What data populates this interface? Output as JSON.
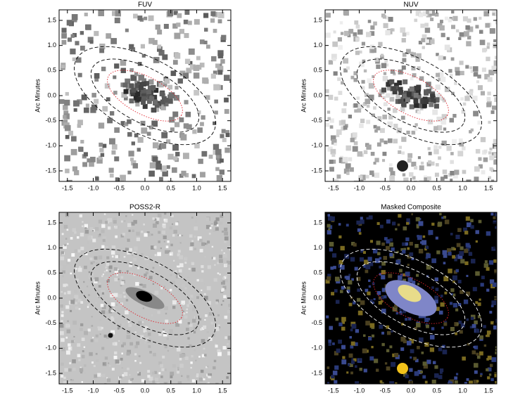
{
  "chart_data": [
    {
      "type": "image",
      "title": "FUV",
      "ylabel": "Arc Minutes",
      "style": "fuv",
      "xlim": [
        -1.66,
        1.66
      ],
      "ylim": [
        -1.71,
        1.71
      ],
      "xticks": [
        -1.5,
        {
          "value": -1,
          "label": "-1.0"
        },
        -0.5,
        {
          "value": 0,
          "label": "0.0"
        },
        0.5,
        {
          "value": 1,
          "label": "1.0"
        },
        1.5
      ],
      "yticks": [
        -1.5,
        {
          "value": -1,
          "label": "-1.0"
        },
        -0.5,
        {
          "value": 0,
          "label": "0.0"
        },
        0.5,
        {
          "value": 1,
          "label": "1.0"
        },
        1.5
      ]
    },
    {
      "type": "image",
      "title": "NUV",
      "ylabel": "Arc Minutes",
      "style": "nuv",
      "xlim": [
        -1.66,
        1.66
      ],
      "ylim": [
        -1.71,
        1.71
      ],
      "xticks": [
        -1.5,
        {
          "value": -1,
          "label": "-1.0"
        },
        -0.5,
        {
          "value": 0,
          "label": "0.0"
        },
        0.5,
        {
          "value": 1,
          "label": "1.0"
        },
        1.5
      ],
      "yticks": [
        -1.5,
        {
          "value": -1,
          "label": "-1.0"
        },
        -0.5,
        {
          "value": 0,
          "label": "0.0"
        },
        0.5,
        {
          "value": 1,
          "label": "1.0"
        },
        1.5
      ]
    },
    {
      "type": "image",
      "title": "POSS2-R",
      "ylabel": "Arc Minutes",
      "style": "poss",
      "xlim": [
        -1.66,
        1.66
      ],
      "ylim": [
        -1.71,
        1.71
      ],
      "xticks": [
        -1.5,
        {
          "value": -1,
          "label": "-1.0"
        },
        -0.5,
        {
          "value": 0,
          "label": "0.0"
        },
        0.5,
        {
          "value": 1,
          "label": "1.0"
        },
        1.5
      ],
      "yticks": [
        -1.5,
        {
          "value": -1,
          "label": "-1.0"
        },
        -0.5,
        {
          "value": 0,
          "label": "0.0"
        },
        0.5,
        {
          "value": 1,
          "label": "1.0"
        },
        1.5
      ]
    },
    {
      "type": "image",
      "title": "Masked Composite",
      "ylabel": "Arc Minutes",
      "style": "composite",
      "xlim": [
        -1.66,
        1.66
      ],
      "ylim": [
        -1.71,
        1.71
      ],
      "xticks": [
        -1.5,
        {
          "value": -1,
          "label": "-1.0"
        },
        -0.5,
        {
          "value": 0,
          "label": "0.0"
        },
        0.5,
        {
          "value": 1,
          "label": "1.0"
        },
        1.5
      ],
      "yticks": [
        -1.5,
        {
          "value": -1,
          "label": "-1.0"
        },
        -0.5,
        {
          "value": 0,
          "label": "0.0"
        },
        0.5,
        {
          "value": 1,
          "label": "1.0"
        },
        1.5
      ]
    }
  ]
}
